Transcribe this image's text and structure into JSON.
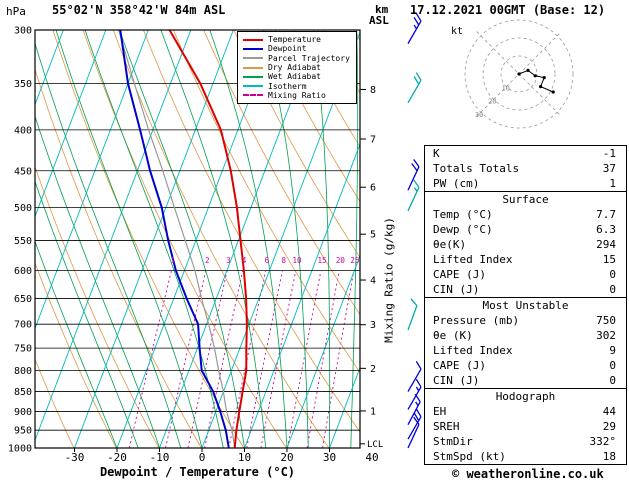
{
  "header": {
    "pressure_unit": "hPa",
    "station_title": "55°02'N 358°42'W 84m ASL",
    "km_label": "km",
    "asl_label": "ASL",
    "datetime": "17.12.2021 00GMT (Base: 12)"
  },
  "chart_data": {
    "type": "skewt-logp",
    "xlabel": "Dewpoint / Temperature (°C)",
    "ylabel_right": "Mixing Ratio (g/kg)",
    "pressure_range": [
      300,
      1000
    ],
    "pressure_ticks": [
      300,
      350,
      400,
      450,
      500,
      550,
      600,
      650,
      700,
      750,
      800,
      850,
      900,
      950,
      1000
    ],
    "temp_ticks": [
      -30,
      -20,
      -10,
      0,
      10,
      20,
      30,
      40
    ],
    "km_ticks": [
      1,
      2,
      3,
      4,
      5,
      6,
      7,
      8
    ],
    "lcl_label": "LCL",
    "mixing_ratio_values": [
      1,
      2,
      3,
      4,
      6,
      8,
      10,
      15,
      20,
      25
    ],
    "legend": [
      {
        "label": "Temperature",
        "color": "#dd0000",
        "dashed": false
      },
      {
        "label": "Dewpoint",
        "color": "#0000cc",
        "dashed": false
      },
      {
        "label": "Parcel Trajectory",
        "color": "#999999",
        "dashed": false
      },
      {
        "label": "Dry Adiabat",
        "color": "#dd9944",
        "dashed": false
      },
      {
        "label": "Wet Adiabat",
        "color": "#00a050",
        "dashed": false
      },
      {
        "label": "Isotherm",
        "color": "#00bbbb",
        "dashed": false
      },
      {
        "label": "Mixing Ratio",
        "color": "#cc0099",
        "dashed": true
      }
    ],
    "colors": {
      "temperature": "#dd0000",
      "dewpoint": "#0000cc",
      "parcel": "#999999",
      "dry_adiabat": "#dd9944",
      "wet_adiabat": "#00a050",
      "isotherm": "#00bbbb",
      "mixing_ratio": "#cc0099",
      "isobar": "#000000"
    },
    "sounding": {
      "pressure": [
        300,
        350,
        400,
        450,
        500,
        550,
        600,
        650,
        700,
        750,
        800,
        850,
        900,
        950,
        1000
      ],
      "temperature": [
        -45,
        -33,
        -24,
        -18,
        -13.3,
        -9.5,
        -6,
        -3,
        -0.5,
        1.5,
        3.5,
        4.5,
        5.5,
        6.5,
        7.7
      ],
      "dewpoint": [
        -56.6,
        -50,
        -43,
        -37,
        -31,
        -26.5,
        -22,
        -17,
        -12,
        -9.5,
        -7,
        -2.4,
        1,
        4,
        6.3
      ],
      "parcel": [
        -57,
        -48.5,
        -41,
        -34,
        -28,
        -22.5,
        -17.5,
        -13.5,
        -9.5,
        -6,
        -3,
        0,
        2.5,
        5.5,
        7.7
      ]
    },
    "wind_barbs": [
      {
        "p": 312,
        "dir": 30,
        "spd": 25,
        "color": "#0000dd"
      },
      {
        "p": 370,
        "dir": 30,
        "spd": 20,
        "color": "#00aaaa"
      },
      {
        "p": 476,
        "dir": 25,
        "spd": 20,
        "color": "#0000dd"
      },
      {
        "p": 505,
        "dir": 25,
        "spd": 15,
        "color": "#00aaaa"
      },
      {
        "p": 712,
        "dir": 20,
        "spd": 10,
        "color": "#00aaaa"
      },
      {
        "p": 850,
        "dir": 30,
        "spd": 10,
        "color": "#0000dd"
      },
      {
        "p": 895,
        "dir": 30,
        "spd": 15,
        "color": "#0000dd"
      },
      {
        "p": 935,
        "dir": 28,
        "spd": 15,
        "color": "#0000dd"
      },
      {
        "p": 975,
        "dir": 30,
        "spd": 20,
        "color": "#0000dd"
      },
      {
        "p": 1000,
        "dir": 25,
        "spd": 10,
        "color": "#0000dd"
      }
    ]
  },
  "hodograph": {
    "unit_label": "kt",
    "ring_values": [
      10,
      20,
      30
    ],
    "trace_u": [
      0,
      5,
      9,
      14,
      12,
      19
    ],
    "trace_v": [
      0,
      2,
      -1,
      -2,
      -7,
      -10
    ]
  },
  "stats_panel": {
    "groups": [
      {
        "header": "",
        "rows": [
          {
            "label": "K",
            "value": "-1"
          },
          {
            "label": "Totals Totals",
            "value": "37"
          },
          {
            "label": "PW (cm)",
            "value": "1"
          }
        ]
      },
      {
        "header": "Surface",
        "rows": [
          {
            "label": "Temp (°C)",
            "value": "7.7"
          },
          {
            "label": "Dewp (°C)",
            "value": "6.3"
          },
          {
            "label": "θe(K)",
            "value": "294"
          },
          {
            "label": "Lifted Index",
            "value": "15"
          },
          {
            "label": "CAPE (J)",
            "value": "0"
          },
          {
            "label": "CIN (J)",
            "value": "0"
          }
        ]
      },
      {
        "header": "Most Unstable",
        "rows": [
          {
            "label": "Pressure (mb)",
            "value": "750"
          },
          {
            "label": "θe (K)",
            "value": "302"
          },
          {
            "label": "Lifted Index",
            "value": "9"
          },
          {
            "label": "CAPE (J)",
            "value": "0"
          },
          {
            "label": "CIN (J)",
            "value": "0"
          }
        ]
      },
      {
        "header": "Hodograph",
        "rows": [
          {
            "label": "EH",
            "value": "44"
          },
          {
            "label": "SREH",
            "value": "29"
          },
          {
            "label": "StmDir",
            "value": "332°"
          },
          {
            "label": "StmSpd (kt)",
            "value": "18"
          }
        ]
      }
    ]
  },
  "footer": {
    "copyright": "© weatheronline.co.uk"
  }
}
